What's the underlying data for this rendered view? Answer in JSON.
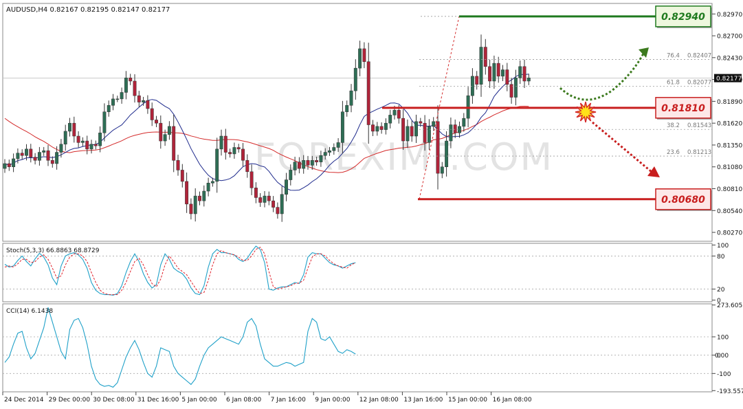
{
  "chart_data": [
    {
      "type": "candlestick",
      "symbol_line": "AUDUSD,H4  0.82167 0.82195 0.82147 0.82177",
      "y_ticks": [
        0.8297,
        0.827,
        0.8243,
        0.8216,
        0.8189,
        0.8162,
        0.8135,
        0.8108,
        0.8081,
        0.8054,
        0.8027
      ],
      "ylim": [
        0.8016,
        0.831
      ],
      "last_price": 0.82177,
      "x_tick_labels": [
        "24 Dec 2014",
        "29 Dec 00:00",
        "30 Dec 08:00",
        "31 Dec 16:00",
        "5 Jan 00:00",
        "6 Jan 08:00",
        "7 Jan 16:00",
        "9 Jan 00:00",
        "12 Jan 08:00",
        "13 Jan 16:00",
        "15 Jan 00:00",
        "16 Jan 08:00"
      ],
      "colors": {
        "bull": "#2e6e55",
        "bear": "#b0243a",
        "ma_fast": "#1e2a8c",
        "ma_slow": "#d42a2a",
        "support": "#c81e1e",
        "target": "#1f7a1f"
      },
      "candles_close": [
        0.8112,
        0.8108,
        0.8118,
        0.8125,
        0.8122,
        0.813,
        0.812,
        0.8116,
        0.8126,
        0.8128,
        0.8116,
        0.8112,
        0.8126,
        0.8136,
        0.8152,
        0.8162,
        0.8146,
        0.8138,
        0.814,
        0.813,
        0.8136,
        0.8134,
        0.815,
        0.8176,
        0.8184,
        0.8192,
        0.8192,
        0.82,
        0.8218,
        0.8214,
        0.8196,
        0.8188,
        0.819,
        0.818,
        0.8166,
        0.8162,
        0.814,
        0.8148,
        0.8158,
        0.8116,
        0.8104,
        0.809,
        0.8062,
        0.805,
        0.8072,
        0.8066,
        0.8078,
        0.8088,
        0.809,
        0.813,
        0.8146,
        0.8126,
        0.8124,
        0.8132,
        0.813,
        0.8116,
        0.8102,
        0.8082,
        0.807,
        0.8064,
        0.8072,
        0.8066,
        0.8058,
        0.805,
        0.8074,
        0.8092,
        0.8104,
        0.8114,
        0.8106,
        0.8116,
        0.811,
        0.8116,
        0.8114,
        0.8122,
        0.8126,
        0.8128,
        0.8132,
        0.8138,
        0.8176,
        0.8184,
        0.8202,
        0.823,
        0.8254,
        0.8238,
        0.816,
        0.8152,
        0.8158,
        0.8154,
        0.8162,
        0.8172,
        0.8178,
        0.8168,
        0.814,
        0.8158,
        0.8146,
        0.8164,
        0.8162,
        0.8138,
        0.8158,
        0.8164,
        0.81,
        0.8108,
        0.814,
        0.816,
        0.815,
        0.8158,
        0.8168,
        0.8196,
        0.822,
        0.821,
        0.8256,
        0.8232,
        0.8214,
        0.8236,
        0.822,
        0.8228,
        0.821,
        0.8194,
        0.8218,
        0.8232,
        0.8214,
        0.8218
      ],
      "overlays": [
        {
          "label": "76.4",
          "value": 0.82407
        },
        {
          "label": "61.8",
          "value": 0.82077
        },
        {
          "label": "38.2",
          "value": 0.81543
        },
        {
          "label": "23.6",
          "value": 0.81213
        }
      ],
      "levels": [
        {
          "label": "0.82940",
          "value": 0.8294,
          "color": "#1f7a1f"
        },
        {
          "label": "0.81810",
          "value": 0.8181,
          "color": "#c81e1e"
        },
        {
          "label": "0.80680",
          "value": 0.8068,
          "color": "#c81e1e"
        }
      ],
      "watermark": "FOREXIMF.COM"
    },
    {
      "type": "line",
      "title": "Stoch(5,3,3) 66.8863 68.8729",
      "y_ticks": [
        100,
        80,
        20,
        0
      ],
      "ylim": [
        -3,
        103
      ],
      "series": [
        {
          "name": "main",
          "color": "#1ea0c8",
          "values": [
            65,
            60,
            62,
            72,
            80,
            70,
            62,
            75,
            85,
            78,
            64,
            40,
            28,
            62,
            80,
            84,
            86,
            82,
            74,
            58,
            32,
            18,
            12,
            10,
            10,
            9,
            12,
            26,
            50,
            70,
            84,
            70,
            48,
            32,
            22,
            28,
            64,
            84,
            74,
            58,
            52,
            48,
            38,
            22,
            12,
            10,
            26,
            60,
            84,
            92,
            86,
            86,
            84,
            82,
            74,
            70,
            76,
            88,
            98,
            92,
            68,
            20,
            18,
            22,
            24,
            24,
            28,
            32,
            30,
            46,
            78,
            86,
            84,
            84,
            76,
            68,
            64,
            62,
            58,
            62,
            66,
            68
          ]
        },
        {
          "name": "signal",
          "color": "#e0202a",
          "values": [
            60,
            62,
            60,
            66,
            74,
            74,
            68,
            70,
            78,
            82,
            74,
            58,
            40,
            44,
            64,
            78,
            84,
            84,
            80,
            70,
            50,
            32,
            18,
            12,
            10,
            10,
            10,
            18,
            32,
            52,
            70,
            76,
            64,
            46,
            30,
            24,
            38,
            64,
            80,
            70,
            58,
            52,
            46,
            34,
            22,
            12,
            14,
            36,
            64,
            84,
            90,
            86,
            84,
            82,
            78,
            72,
            72,
            80,
            92,
            96,
            84,
            52,
            24,
            20,
            22,
            24,
            26,
            30,
            31,
            36,
            58,
            78,
            84,
            84,
            80,
            72,
            66,
            62,
            60,
            58,
            64,
            68
          ]
        }
      ]
    },
    {
      "type": "line",
      "title": "CCI(14) 6.1438",
      "y_ticks": [
        273.605,
        100,
        0,
        -100,
        -193.5572
      ],
      "right_label_value": "0.00",
      "ylim": [
        -200,
        280
      ],
      "series": [
        {
          "name": "cci",
          "color": "#1ea0c8",
          "values": [
            -40,
            -10,
            60,
            120,
            130,
            40,
            -20,
            10,
            80,
            150,
            260,
            180,
            100,
            20,
            -20,
            140,
            190,
            200,
            150,
            60,
            -60,
            -130,
            -160,
            -170,
            -165,
            -175,
            -150,
            -80,
            -10,
            40,
            80,
            30,
            -40,
            -100,
            -120,
            -60,
            40,
            30,
            20,
            -60,
            -100,
            -120,
            -140,
            -160,
            -130,
            -60,
            0,
            40,
            60,
            80,
            100,
            90,
            80,
            70,
            60,
            100,
            180,
            200,
            160,
            60,
            -20,
            -40,
            -60,
            -60,
            -50,
            -40,
            -45,
            -60,
            -50,
            -40,
            130,
            200,
            180,
            90,
            80,
            100,
            60,
            20,
            10,
            30,
            20,
            6
          ]
        }
      ]
    }
  ]
}
